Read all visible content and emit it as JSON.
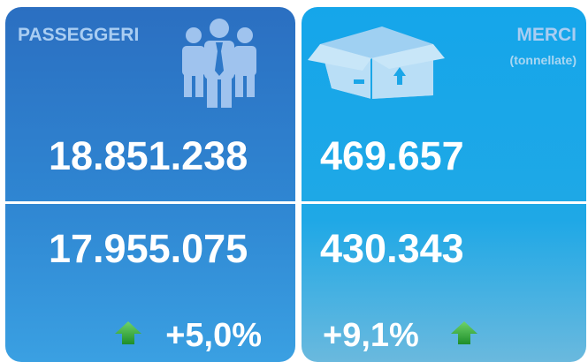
{
  "panels": [
    {
      "title": "PASSEGGERI",
      "current": "18.851.238",
      "previous": "17.955.075",
      "change": "+5,0%"
    },
    {
      "title": "MERCI",
      "subtitle": "(tonnellate)",
      "current": "469.657",
      "previous": "430.343",
      "change": "+9,1%"
    }
  ]
}
